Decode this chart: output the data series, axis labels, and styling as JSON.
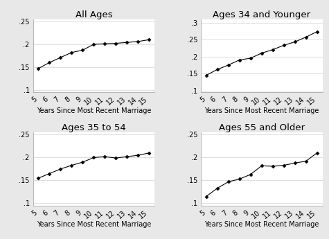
{
  "panels": [
    {
      "title": "All Ages",
      "x": [
        5,
        6,
        7,
        8,
        9,
        10,
        11,
        12,
        13,
        14,
        15
      ],
      "y": [
        0.147,
        0.16,
        0.171,
        0.182,
        0.187,
        0.2,
        0.201,
        0.202,
        0.204,
        0.206,
        0.21
      ],
      "ylim": [
        0.095,
        0.255
      ],
      "yticks": [
        0.1,
        0.15,
        0.2,
        0.25
      ],
      "ytick_labels": [
        ".1",
        ".15",
        ".2",
        ".25"
      ]
    },
    {
      "title": "Ages 34 and Younger",
      "x": [
        5,
        6,
        7,
        8,
        9,
        10,
        11,
        12,
        13,
        14,
        15
      ],
      "y": [
        0.145,
        0.162,
        0.175,
        0.19,
        0.195,
        0.21,
        0.22,
        0.233,
        0.243,
        0.257,
        0.273
      ],
      "ylim": [
        0.095,
        0.31
      ],
      "yticks": [
        0.1,
        0.15,
        0.2,
        0.25,
        0.3
      ],
      "ytick_labels": [
        ".1",
        ".15",
        ".2",
        ".25",
        ".3"
      ]
    },
    {
      "title": "Ages 35 to 54",
      "x": [
        5,
        6,
        7,
        8,
        9,
        10,
        11,
        12,
        13,
        14,
        15
      ],
      "y": [
        0.155,
        0.165,
        0.175,
        0.183,
        0.19,
        0.2,
        0.202,
        0.199,
        0.202,
        0.205,
        0.21
      ],
      "ylim": [
        0.095,
        0.255
      ],
      "yticks": [
        0.1,
        0.15,
        0.2,
        0.25
      ],
      "ytick_labels": [
        ".1",
        ".15",
        ".2",
        ".25"
      ]
    },
    {
      "title": "Ages 55 and Older",
      "x": [
        5,
        6,
        7,
        8,
        9,
        10,
        11,
        12,
        13,
        14,
        15
      ],
      "y": [
        0.115,
        0.133,
        0.147,
        0.153,
        0.163,
        0.182,
        0.181,
        0.183,
        0.188,
        0.192,
        0.21
      ],
      "ylim": [
        0.095,
        0.255
      ],
      "yticks": [
        0.1,
        0.15,
        0.2,
        0.25
      ],
      "ytick_labels": [
        ".1",
        ".15",
        ".2",
        ".25"
      ]
    }
  ],
  "xlabel": "Years Since Most Recent Marriage",
  "line_color": "black",
  "marker": "D",
  "marker_size": 2.5,
  "line_width": 0.8,
  "background_color": "#e8e8e8",
  "plot_bg_color": "white",
  "title_fontsize": 9.5,
  "tick_fontsize": 7,
  "xlabel_fontsize": 7,
  "xticks": [
    5,
    6,
    7,
    8,
    9,
    10,
    11,
    12,
    13,
    14,
    15
  ],
  "xtick_rotation": 40
}
